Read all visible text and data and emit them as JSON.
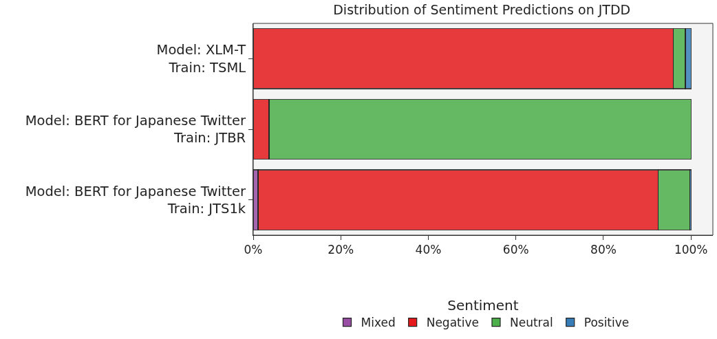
{
  "chart_data": {
    "type": "bar",
    "orientation": "horizontal",
    "stacked": true,
    "title": "Distribution of Sentiment Predictions on JTDD",
    "legend_title": "Sentiment",
    "legend": "bottom",
    "grid": false,
    "categories": [
      "Model: XLM-T\nTrain: TSML",
      "Model: BERT for Japanese Twitter\nTrain: JTBR",
      "Model: BERT for Japanese Twitter\nTrain: JTS1k"
    ],
    "series": [
      {
        "name": "Mixed",
        "color": "#984ea3",
        "values": [
          null,
          null,
          1.1
        ]
      },
      {
        "name": "Negative",
        "color": "#e41a1c",
        "values": [
          95.9,
          3.6,
          91.4
        ]
      },
      {
        "name": "Neutral",
        "color": "#4daf4a",
        "values": [
          2.8,
          96.4,
          7.2
        ]
      },
      {
        "name": "Positive",
        "color": "#377eb8",
        "values": [
          1.3,
          null,
          0.3
        ]
      }
    ],
    "xlim": [
      0,
      105
    ],
    "xticks": [
      {
        "value": 0,
        "label": "0%"
      },
      {
        "value": 20,
        "label": "20%"
      },
      {
        "value": 40,
        "label": "40%"
      },
      {
        "value": 60,
        "label": "60%"
      },
      {
        "value": 80,
        "label": "80%"
      },
      {
        "value": 100,
        "label": "100%"
      }
    ]
  }
}
